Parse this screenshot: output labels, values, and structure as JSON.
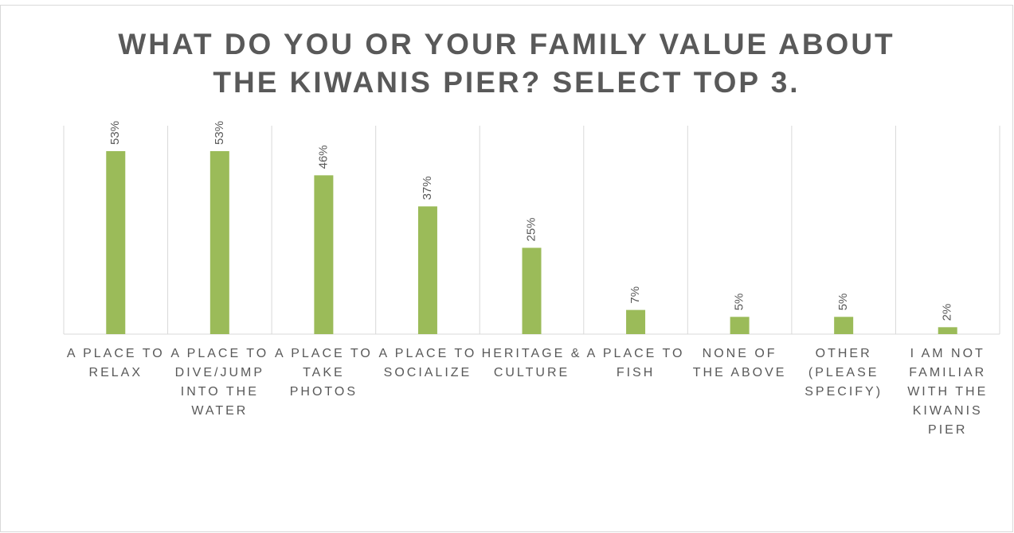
{
  "chart_data": {
    "type": "bar",
    "title": "WHAT DO YOU OR YOUR FAMILY VALUE ABOUT THE KIWANIS PIER? SELECT TOP 3.",
    "categories": [
      "A PLACE TO RELAX",
      "A PLACE TO DIVE/JUMP INTO THE WATER",
      "A PLACE TO TAKE PHOTOS",
      "A PLACE TO SOCIALIZE",
      "HERITAGE & CULTURE",
      "A PLACE TO FISH",
      "NONE OF THE ABOVE",
      "OTHER (PLEASE SPECIFY)",
      "I AM NOT FAMILIAR WITH THE KIWANIS PIER"
    ],
    "values": [
      53,
      53,
      46,
      37,
      25,
      7,
      5,
      5,
      2
    ],
    "value_labels": [
      "53%",
      "53%",
      "46%",
      "37%",
      "25%",
      "7%",
      "5%",
      "5%",
      "2%"
    ],
    "color": "#9bbb59"
  }
}
